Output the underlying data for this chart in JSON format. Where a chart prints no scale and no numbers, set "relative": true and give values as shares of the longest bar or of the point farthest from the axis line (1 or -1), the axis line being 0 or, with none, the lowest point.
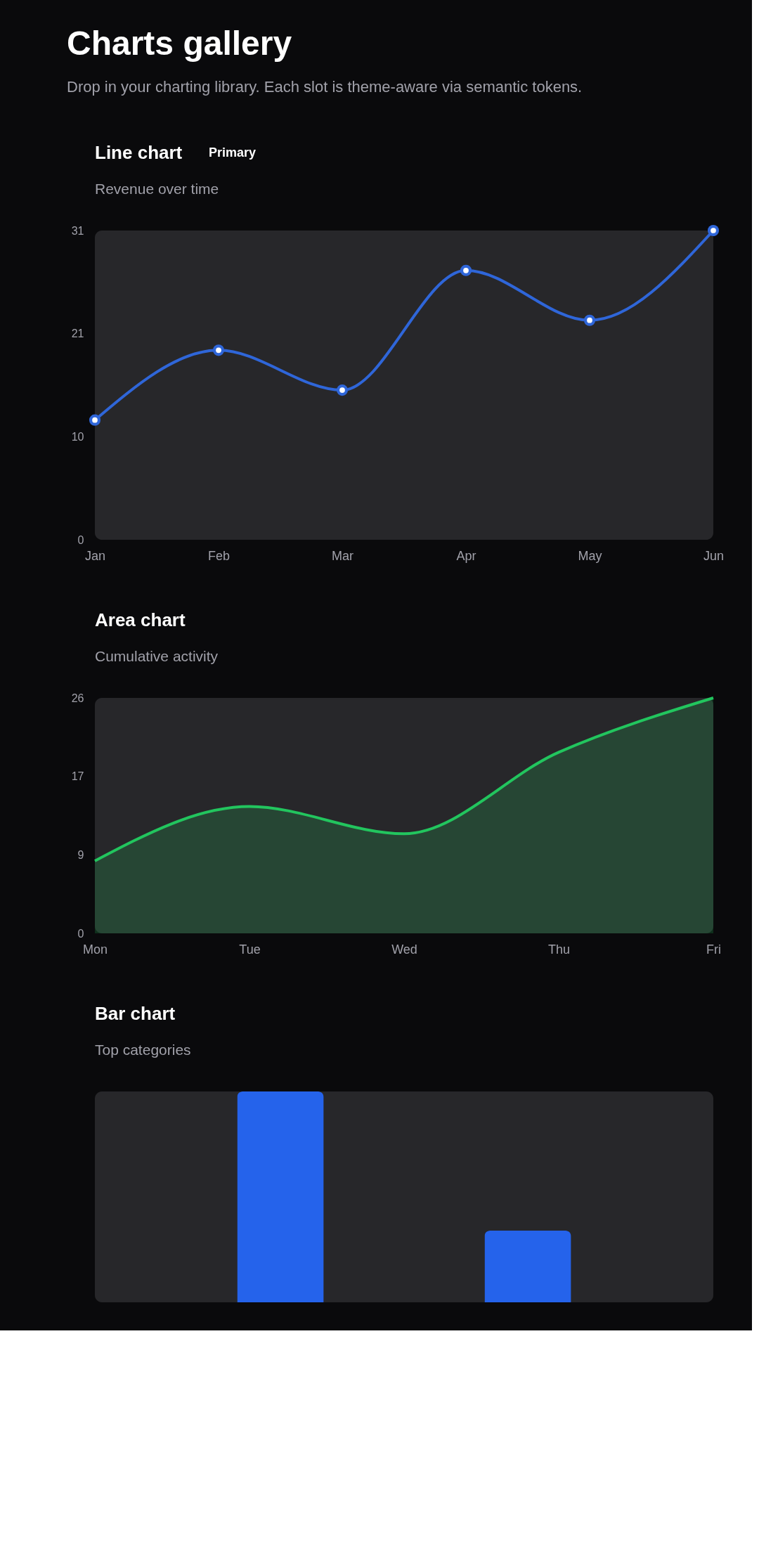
{
  "chart_data": [
    {
      "type": "other",
      "title": "Charts gallery",
      "subtitle": "Drop in your charting library. Each slot is theme-aware via semantic tokens."
    },
    {
      "type": "line",
      "title": "Line chart",
      "subtitle": "Revenue over time",
      "annotations": [
        "Primary"
      ],
      "categories": [
        "Jan",
        "Feb",
        "Mar",
        "Apr",
        "May",
        "Jun"
      ],
      "series": [
        {
          "color": "#2f66d9",
          "values": [
            12,
            19,
            15,
            27,
            22,
            31
          ]
        }
      ],
      "ylim": [
        0,
        31
      ],
      "yticks": [
        0,
        {
          "value": 10.333,
          "label": "10"
        },
        {
          "value": 20.667,
          "label": "21"
        },
        31
      ],
      "marker": "circle",
      "grid": false,
      "legend": false
    },
    {
      "type": "area",
      "title": "Area chart",
      "subtitle": "Cumulative activity",
      "categories": [
        "Mon",
        "Tue",
        "Wed",
        "Thu",
        "Fri"
      ],
      "series": [
        {
          "color": "#22c55e",
          "values": [
            8,
            14,
            11,
            20,
            26
          ]
        }
      ],
      "ylim": [
        0,
        26
      ],
      "yticks": [
        0,
        {
          "value": 8.667,
          "label": "9"
        },
        {
          "value": 17.333,
          "label": "17"
        },
        26
      ],
      "grid": false,
      "legend": false
    },
    {
      "type": "bar",
      "title": "Bar chart",
      "subtitle": "Top categories",
      "relative": true,
      "categories": [
        null,
        null,
        null,
        null,
        null
      ],
      "series": [
        {
          "color": "#2563eb",
          "values": [
            null,
            1,
            null,
            0.34,
            null
          ]
        }
      ],
      "grid": false,
      "legend": false
    }
  ]
}
